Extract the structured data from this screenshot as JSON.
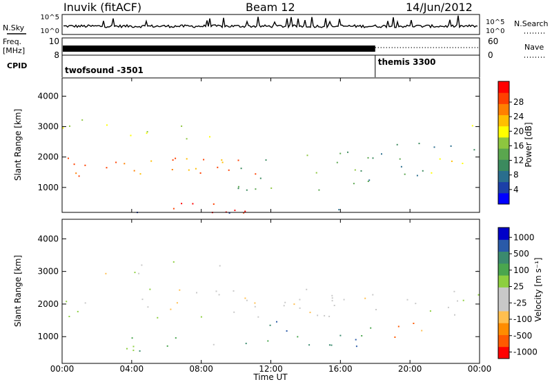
{
  "header": {
    "station": "Inuvik (fitACF)",
    "beam": "Beam 12",
    "date": "14/Jun/2012"
  },
  "labels": {
    "nsky": "N.Sky",
    "nsearch": "N.Search",
    "freq_line1": "Freq.",
    "freq_line2": "[MHz]",
    "nave": "Nave",
    "cpid": "CPID",
    "nsky_top": "10^5",
    "nsky_bottom": "10^0",
    "nsearch_top": "10^5",
    "nsearch_bottom": "10^0",
    "freq_top": "10",
    "freq_bottom": "8",
    "nave_top": "60",
    "nave_bottom": "0"
  },
  "cpid_segments": [
    {
      "start_hour": 0,
      "end_hour": 18,
      "name": "twofsound -3501"
    },
    {
      "start_hour": 18,
      "end_hour": 24,
      "name": "themis 3300"
    }
  ],
  "colors": {
    "power_scale": [
      "#0000ff",
      "#1c3fa8",
      "#2a6e8e",
      "#3b8a5e",
      "#5aa64e",
      "#8dc63f",
      "#ffff00",
      "#ffbf00",
      "#ff8000",
      "#ff4000",
      "#ff0000"
    ],
    "velocity_scale": [
      "#ff0000",
      "#ff5a00",
      "#ff8c00",
      "#ffbf4f",
      "#c8c8c8",
      "#c8c8c8",
      "#8dcf3f",
      "#4aa64e",
      "#3b8a6e",
      "#2a5aa8",
      "#0000c8"
    ]
  },
  "chart_data": [
    {
      "type": "heatmap",
      "panel": "power",
      "ylabel": "Slant Range [km]",
      "yticks": [
        1000,
        2000,
        3000,
        4000
      ],
      "ylim": [
        180,
        4600
      ],
      "xlim_hours": [
        0,
        24
      ],
      "colorbar": {
        "label": "Power [dB]",
        "ticks": [
          "4",
          "8",
          "12",
          "16",
          "20",
          "24",
          "28"
        ]
      }
    },
    {
      "type": "heatmap",
      "panel": "velocity",
      "ylabel": "Slant Range [km]",
      "yticks": [
        1000,
        2000,
        3000,
        4000
      ],
      "ylim": [
        180,
        4600
      ],
      "xlim_hours": [
        0,
        24
      ],
      "xlabel": "Time UT",
      "xticks": [
        "00:00",
        "04:00",
        "08:00",
        "12:00",
        "16:00",
        "20:00",
        "00:00"
      ],
      "colorbar": {
        "label": "Velocity [m s⁻¹]",
        "ticks": [
          "1000",
          "500",
          "100",
          "25",
          "-25",
          "-100",
          "-500",
          "-1000"
        ]
      }
    }
  ]
}
